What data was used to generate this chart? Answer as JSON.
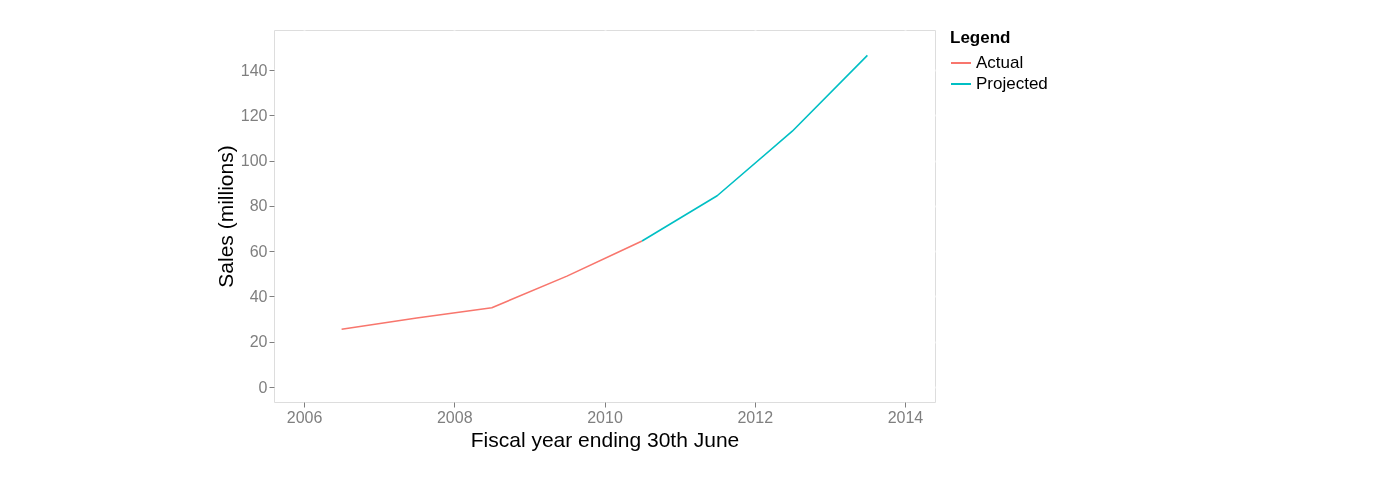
{
  "chart_data": {
    "type": "line",
    "xlabel": "Fiscal year ending 30th June",
    "ylabel": "Sales (millions)",
    "legend_title": "Legend",
    "x": [
      2006.5,
      2007.5,
      2008.5,
      2009.5,
      2010.5,
      2011.5,
      2012.5,
      2013.5
    ],
    "series": [
      {
        "name": "Actual",
        "color": "#f8766d",
        "values": [
          25.5,
          30.5,
          35,
          49,
          64.5,
          null,
          null,
          null
        ]
      },
      {
        "name": "Projected",
        "color": "#00bfc4",
        "values": [
          null,
          null,
          null,
          null,
          64.5,
          84.5,
          113,
          146.5
        ]
      }
    ],
    "xlim": [
      2005.6,
      2014.4
    ],
    "xticks": [
      2006,
      2008,
      2010,
      2012,
      2014
    ],
    "ylim": [
      -6.6,
      157.7
    ],
    "yticks": [
      0,
      20,
      40,
      60,
      80,
      100,
      120,
      140
    ],
    "grid": true,
    "legend": "right"
  }
}
